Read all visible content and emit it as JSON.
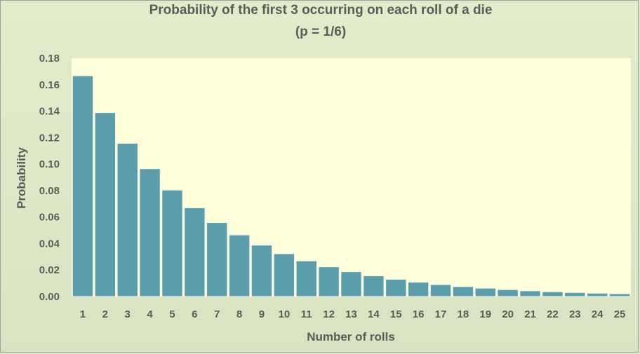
{
  "chart_data": {
    "type": "bar",
    "title": "Probability of the first 3 occurring on each roll of a die",
    "subtitle": "(p = 1/6)",
    "xlabel": "Number of rolls",
    "ylabel": "Probability",
    "categories": [
      "1",
      "2",
      "3",
      "4",
      "5",
      "6",
      "7",
      "8",
      "9",
      "10",
      "11",
      "12",
      "13",
      "14",
      "15",
      "16",
      "17",
      "18",
      "19",
      "20",
      "21",
      "22",
      "23",
      "24",
      "25"
    ],
    "values": [
      0.1667,
      0.1389,
      0.1157,
      0.0965,
      0.0804,
      0.067,
      0.0558,
      0.0465,
      0.0388,
      0.0323,
      0.0269,
      0.0224,
      0.0187,
      0.0156,
      0.013,
      0.0108,
      0.009,
      0.0075,
      0.0063,
      0.0052,
      0.0043,
      0.0036,
      0.003,
      0.0025,
      0.0021
    ],
    "ylim": [
      0,
      0.18
    ],
    "yticks": [
      "0.00",
      "0.02",
      "0.04",
      "0.06",
      "0.08",
      "0.10",
      "0.12",
      "0.14",
      "0.16",
      "0.18"
    ],
    "grid": false,
    "legend": "none",
    "colors": {
      "bar": "#5b9dab",
      "bar_border": "#f4f7ea",
      "plot_background": "#ffffdc",
      "chart_background": "#dde6c6",
      "text": "#5b5b5b"
    }
  }
}
